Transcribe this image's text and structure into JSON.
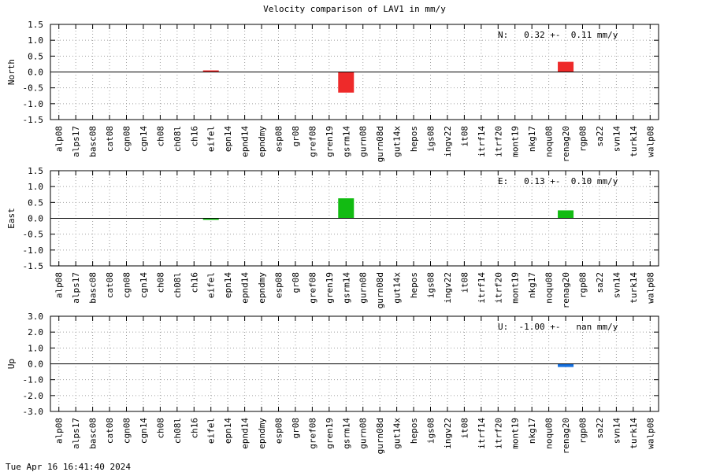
{
  "title": "Velocity comparison of LAV1 in mm/y",
  "footer": "Tue Apr 16 16:41:40 2024",
  "chart_data": {
    "type": "bar",
    "categories": [
      "alp08",
      "alps17",
      "basc08",
      "cat08",
      "cgn08",
      "cgn14",
      "ch08",
      "ch08l",
      "ch16",
      "eifel",
      "epn14",
      "epnd14",
      "epndmy",
      "esp08",
      "gr08",
      "gref08",
      "gren19",
      "gsrm14",
      "gurn08",
      "gurn08d",
      "gut14x",
      "hepos",
      "igs08",
      "ingv22",
      "it08",
      "itrf14",
      "itrf20",
      "mont19",
      "nkg17",
      "noqu08",
      "renag20",
      "rgp08",
      "sa22",
      "svn14",
      "turk14",
      "walp08"
    ],
    "panels": [
      {
        "key": "north",
        "ylabel": "North",
        "ylim": [
          -1.5,
          1.5
        ],
        "ticks": [
          1.5,
          1.0,
          0.5,
          0.0,
          -0.5,
          -1.0,
          -1.5
        ],
        "tick_labels": [
          "1.5",
          "1.0",
          "0.5",
          "0.0",
          "-0.5",
          "-1.0",
          "-1.5"
        ],
        "color": "#ee2a2a",
        "annotation": "N:   0.32 +-  0.11 mm/y",
        "values": {
          "eifel": 0.02,
          "gsrm14": -0.65,
          "renag20": 0.32
        }
      },
      {
        "key": "east",
        "ylabel": "East",
        "ylim": [
          -1.5,
          1.5
        ],
        "ticks": [
          1.5,
          1.0,
          0.5,
          0.0,
          -0.5,
          -1.0,
          -1.5
        ],
        "tick_labels": [
          "1.5",
          "1.0",
          "0.5",
          "0.0",
          "-0.5",
          "-1.0",
          "-1.5"
        ],
        "color": "#12bb12",
        "annotation": "E:   0.13 +-  0.10 mm/y",
        "values": {
          "eifel": -0.05,
          "gsrm14": 0.63,
          "renag20": 0.25
        }
      },
      {
        "key": "up",
        "ylabel": "Up",
        "ylim": [
          -3.0,
          3.0
        ],
        "ticks": [
          3.0,
          2.0,
          1.0,
          0.0,
          -1.0,
          -2.0,
          -3.0
        ],
        "tick_labels": [
          "3.0",
          "2.0",
          "1.0",
          "0.0",
          "-1.0",
          "-2.0",
          "-3.0"
        ],
        "color": "#1570e0",
        "annotation": "U:  -1.00 +-   nan mm/y",
        "values": {
          "renag20": -0.2
        }
      }
    ],
    "grid": true
  }
}
